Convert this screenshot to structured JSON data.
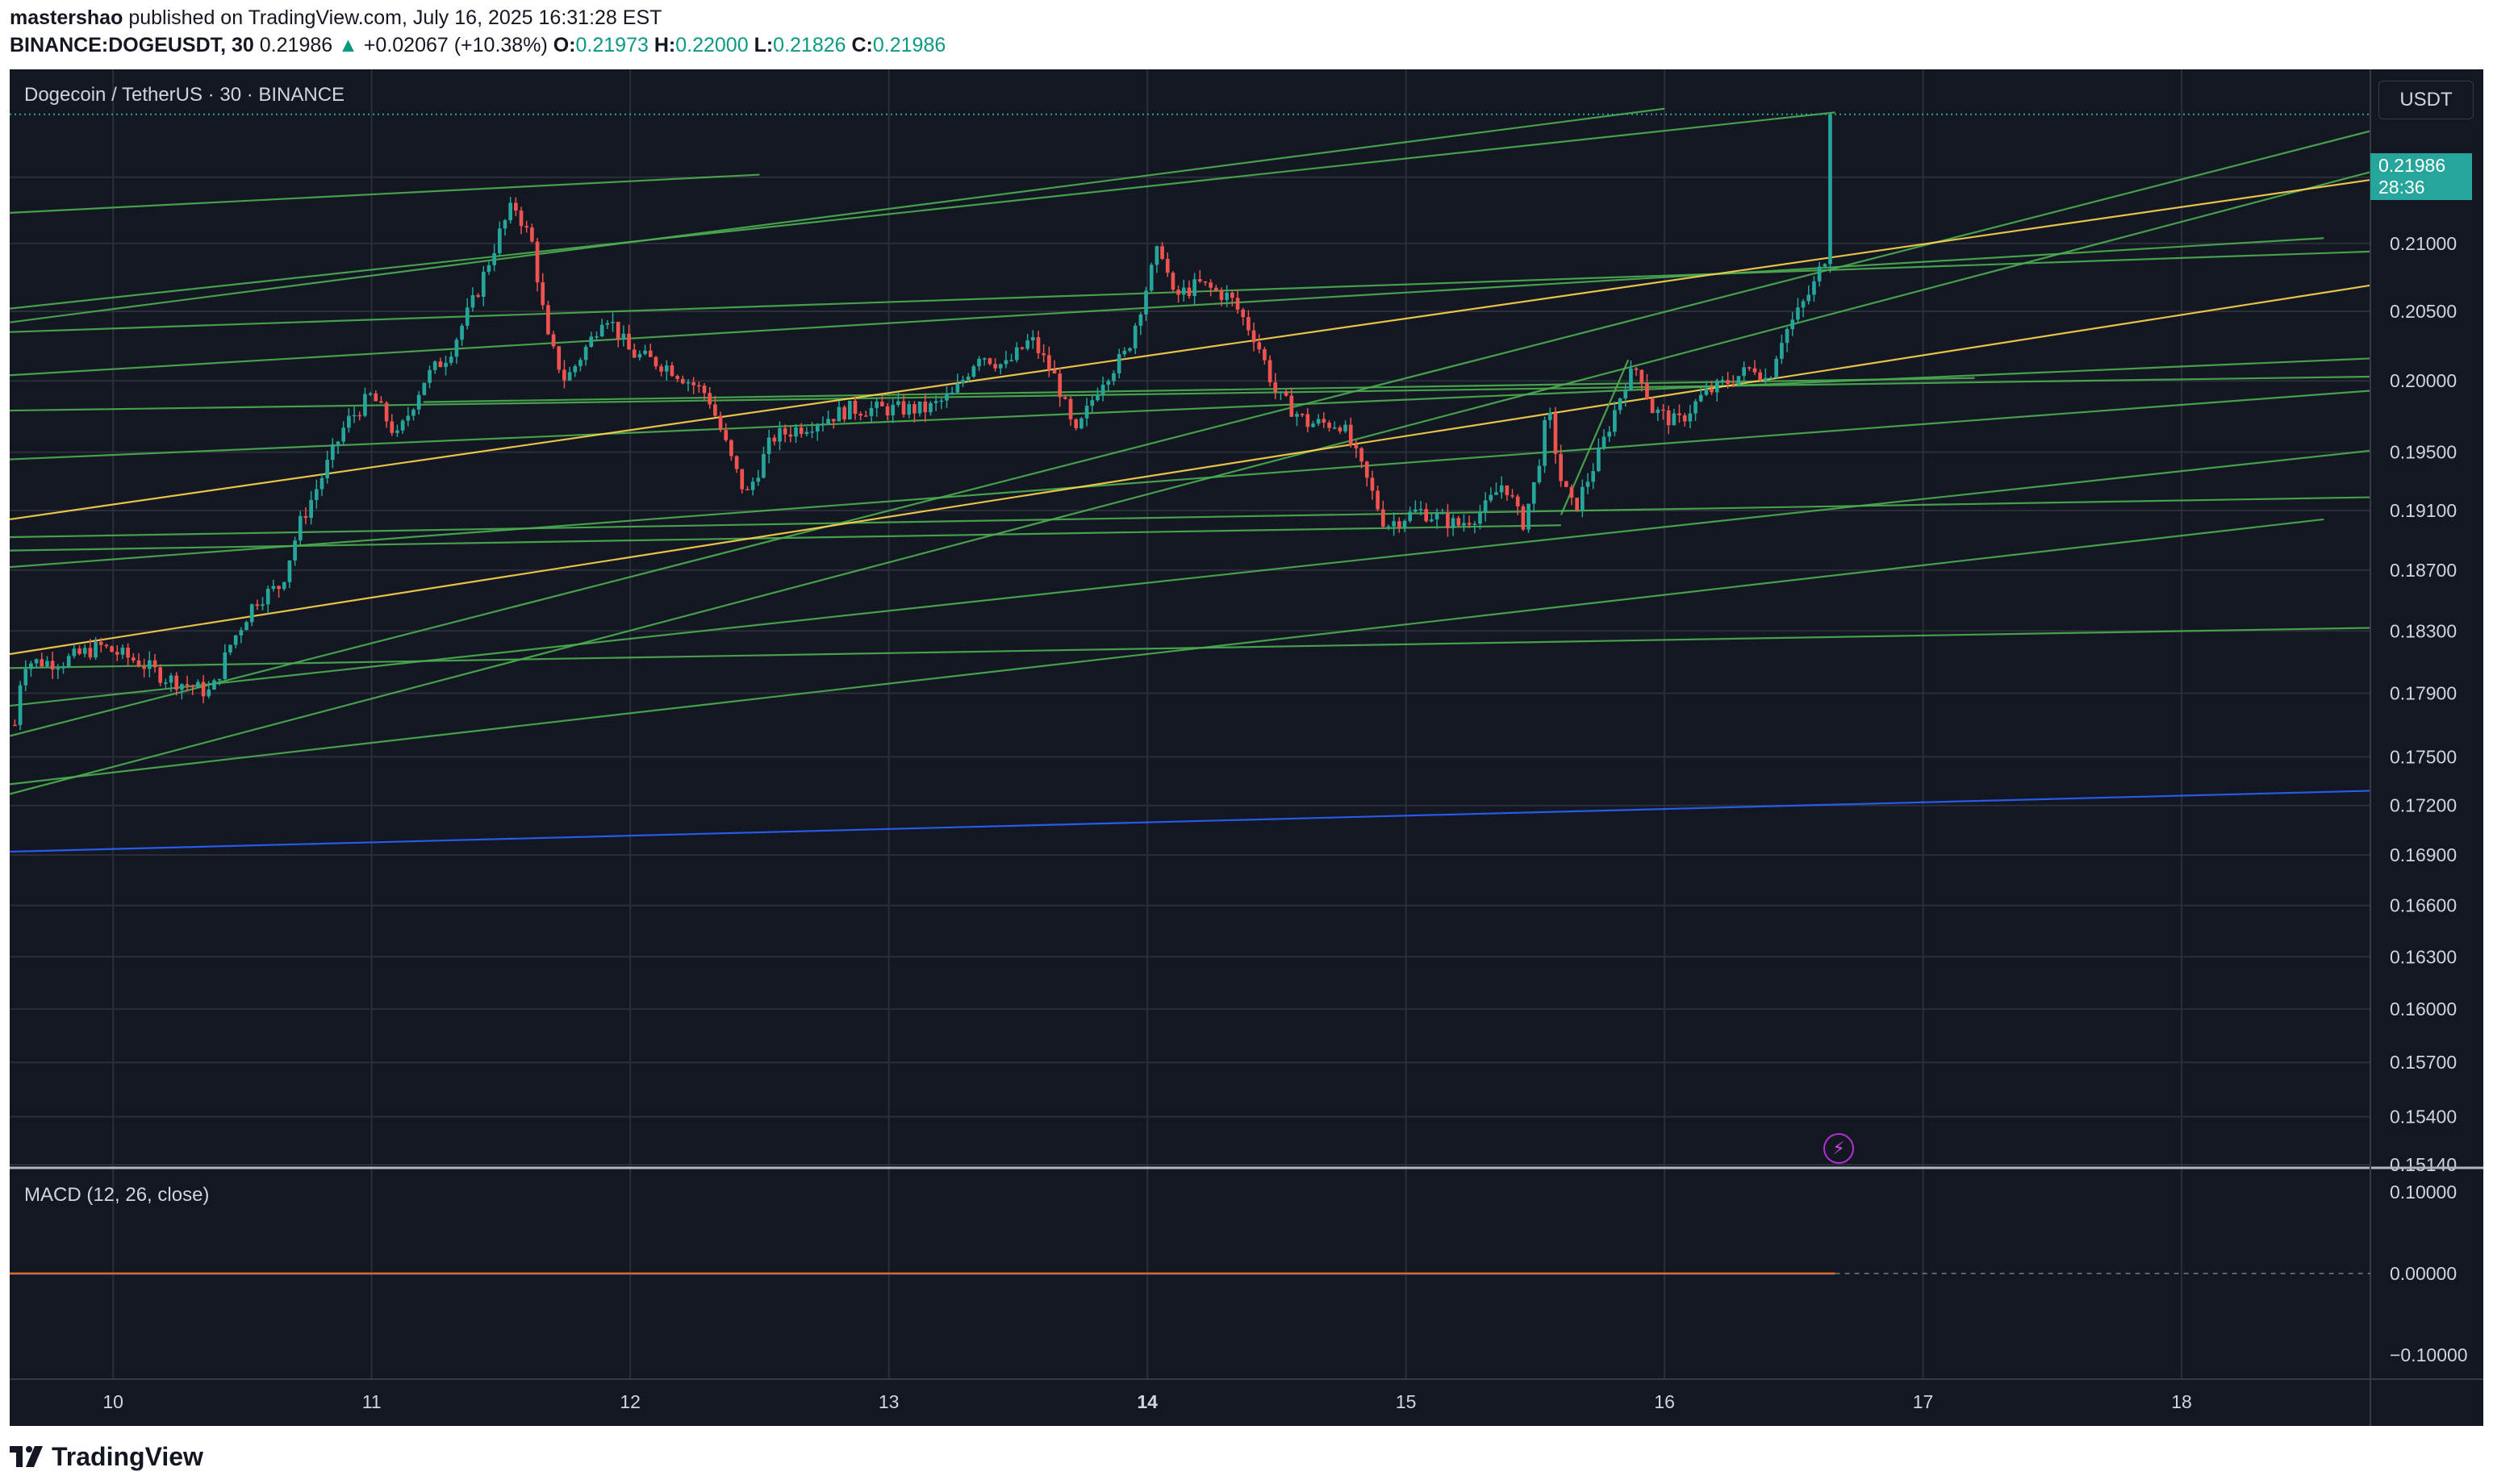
{
  "header": {
    "publisher": "mastershao",
    "published_text": "published on TradingView.com, July 16, 2025 16:31:28 EST",
    "symbol": "BINANCE:DOGEUSDT, 30",
    "last": "0.21986",
    "change_arrow": "▲",
    "change": "+0.02067 (+10.38%)",
    "o_label": "O:",
    "o_value": "0.21973",
    "h_label": "H:",
    "h_value": "0.22000",
    "l_label": "L:",
    "l_value": "0.21826",
    "c_label": "C:",
    "c_value": "0.21986"
  },
  "chart": {
    "title": "Dogecoin / TetherUS · 30 · BINANCE",
    "currency_button": "USDT",
    "price_tag": "0.21986",
    "countdown": "28:36",
    "macd_title": "MACD (12, 26, close)",
    "bolt_icon": "⚡",
    "colors": {
      "background": "#131722",
      "grid": "#2a2e39",
      "up": "#26a69a",
      "down": "#ef5350",
      "trend_green": "#4caf50",
      "trend_yellow": "#ffd54f",
      "trend_blue": "#2962ff",
      "macd_line": "#ff6d00",
      "axis_text": "#d1d4dc"
    }
  },
  "chart_data": {
    "type": "candlestick",
    "interval": "30m",
    "x_labels": [
      "10",
      "11",
      "12",
      "13",
      "14",
      "15",
      "16",
      "17",
      "18"
    ],
    "x_label_bold": "14",
    "x_range_days": [
      9.6,
      18.73
    ],
    "price_ticks": [
      "0.21500",
      "0.21000",
      "0.20500",
      "0.20000",
      "0.19500",
      "0.19100",
      "0.18700",
      "0.18300",
      "0.17900",
      "0.17500",
      "0.17200",
      "0.16900",
      "0.16600",
      "0.16300",
      "0.16000",
      "0.15700",
      "0.15400",
      "0.15140"
    ],
    "price_scale": "log",
    "price_range": [
      0.1514,
      0.2234
    ],
    "last_price": 0.21986,
    "close_path": [
      [
        9.62,
        0.177
      ],
      [
        9.65,
        0.181
      ],
      [
        9.8,
        0.181
      ],
      [
        9.95,
        0.182
      ],
      [
        10.1,
        0.181
      ],
      [
        10.2,
        0.18
      ],
      [
        10.38,
        0.179
      ],
      [
        10.45,
        0.182
      ],
      [
        10.55,
        0.185
      ],
      [
        10.65,
        0.186
      ],
      [
        10.72,
        0.19
      ],
      [
        10.8,
        0.193
      ],
      [
        10.9,
        0.197
      ],
      [
        11.0,
        0.199
      ],
      [
        11.1,
        0.196
      ],
      [
        11.2,
        0.2
      ],
      [
        11.3,
        0.202
      ],
      [
        11.4,
        0.206
      ],
      [
        11.5,
        0.211
      ],
      [
        11.55,
        0.213
      ],
      [
        11.62,
        0.21
      ],
      [
        11.68,
        0.203
      ],
      [
        11.75,
        0.2
      ],
      [
        11.85,
        0.203
      ],
      [
        11.9,
        0.205
      ],
      [
        12.0,
        0.202
      ],
      [
        12.15,
        0.201
      ],
      [
        12.3,
        0.199
      ],
      [
        12.4,
        0.194
      ],
      [
        12.45,
        0.192
      ],
      [
        12.55,
        0.196
      ],
      [
        12.7,
        0.197
      ],
      [
        12.85,
        0.198
      ],
      [
        13.0,
        0.198
      ],
      [
        13.15,
        0.198
      ],
      [
        13.25,
        0.199
      ],
      [
        13.35,
        0.202
      ],
      [
        13.45,
        0.201
      ],
      [
        13.55,
        0.203
      ],
      [
        13.65,
        0.2
      ],
      [
        13.72,
        0.196
      ],
      [
        13.82,
        0.2
      ],
      [
        13.92,
        0.202
      ],
      [
        14.0,
        0.207
      ],
      [
        14.05,
        0.21
      ],
      [
        14.1,
        0.206
      ],
      [
        14.2,
        0.207
      ],
      [
        14.32,
        0.206
      ],
      [
        14.42,
        0.203
      ],
      [
        14.5,
        0.199
      ],
      [
        14.62,
        0.197
      ],
      [
        14.75,
        0.197
      ],
      [
        14.85,
        0.193
      ],
      [
        14.92,
        0.19
      ],
      [
        15.05,
        0.191
      ],
      [
        15.2,
        0.19
      ],
      [
        15.3,
        0.191
      ],
      [
        15.38,
        0.193
      ],
      [
        15.45,
        0.19
      ],
      [
        15.5,
        0.193
      ],
      [
        15.55,
        0.198
      ],
      [
        15.6,
        0.193
      ],
      [
        15.65,
        0.191
      ],
      [
        15.75,
        0.195
      ],
      [
        15.85,
        0.2
      ],
      [
        15.9,
        0.201
      ],
      [
        15.95,
        0.198
      ],
      [
        16.05,
        0.197
      ],
      [
        16.15,
        0.199
      ],
      [
        16.25,
        0.2
      ],
      [
        16.35,
        0.201
      ],
      [
        16.4,
        0.2
      ],
      [
        16.45,
        0.203
      ],
      [
        16.52,
        0.205
      ],
      [
        16.58,
        0.207
      ],
      [
        16.62,
        0.209
      ],
      [
        16.64,
        0.213
      ],
      [
        16.66,
        0.21986
      ]
    ],
    "trendlines": [
      {
        "color": "green",
        "from": [
          9.6,
          0.1727
        ],
        "to": [
          18.73,
          0.2154
        ]
      },
      {
        "color": "green",
        "from": [
          9.6,
          0.1763
        ],
        "to": [
          18.73,
          0.21856
        ]
      },
      {
        "color": "green",
        "from": [
          9.6,
          0.2052
        ],
        "to": [
          16.66,
          0.22001
        ]
      },
      {
        "color": "green",
        "from": [
          9.6,
          0.2042
        ],
        "to": [
          16.0,
          0.2203
        ]
      },
      {
        "color": "green",
        "from": [
          9.6,
          0.2123
        ],
        "to": [
          12.5,
          0.2152
        ]
      },
      {
        "color": "green",
        "from": [
          9.6,
          0.2035
        ],
        "to": [
          18.73,
          0.2094
        ]
      },
      {
        "color": "green",
        "from": [
          9.6,
          0.1979
        ],
        "to": [
          18.73,
          0.2003
        ]
      },
      {
        "color": "green",
        "from": [
          9.6,
          0.1892
        ],
        "to": [
          18.73,
          0.1919
        ]
      },
      {
        "color": "green",
        "from": [
          9.6,
          0.1806
        ],
        "to": [
          18.73,
          0.1832
        ]
      },
      {
        "color": "green",
        "from": [
          9.6,
          0.1733
        ],
        "to": [
          18.55,
          0.1904
        ]
      },
      {
        "color": "green",
        "from": [
          9.6,
          0.1782
        ],
        "to": [
          18.73,
          0.1951
        ]
      },
      {
        "color": "green",
        "from": [
          9.6,
          0.1872
        ],
        "to": [
          18.73,
          0.1993
        ]
      },
      {
        "color": "green",
        "from": [
          9.6,
          0.1945
        ],
        "to": [
          18.73,
          0.2016
        ]
      },
      {
        "color": "green",
        "from": [
          9.6,
          0.2004
        ],
        "to": [
          18.55,
          0.2104
        ]
      },
      {
        "color": "green",
        "from": [
          11.2,
          0.1985
        ],
        "to": [
          17.2,
          0.2002
        ]
      },
      {
        "color": "green",
        "from": [
          9.6,
          0.1883
        ],
        "to": [
          15.6,
          0.19
        ]
      },
      {
        "color": "yellow",
        "from": [
          9.6,
          0.1904
        ],
        "to": [
          18.73,
          0.2148
        ]
      },
      {
        "color": "yellow",
        "from": [
          9.6,
          0.1815
        ],
        "to": [
          18.73,
          0.2069
        ]
      },
      {
        "color": "blue",
        "from": [
          9.6,
          0.1692
        ],
        "to": [
          18.73,
          0.1729
        ]
      },
      {
        "color": "green",
        "from": [
          15.6,
          0.1907
        ],
        "to": [
          15.86,
          0.2015
        ]
      }
    ],
    "macd": {
      "title": "MACD (12, 26, close)",
      "ticks": [
        "0.10000",
        "0.00000",
        "−0.10000"
      ],
      "range": [
        -0.13,
        0.13
      ],
      "values_approx": 0.0
    }
  },
  "footer": {
    "brand": "TradingView"
  }
}
